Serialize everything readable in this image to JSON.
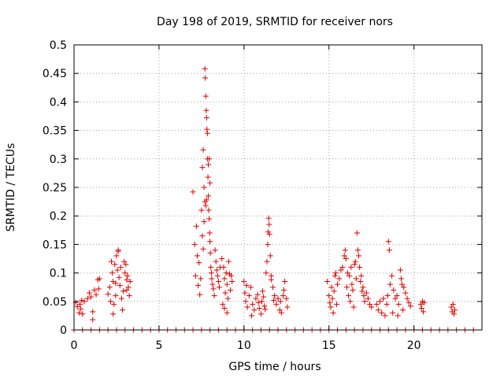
{
  "chart_data": {
    "type": "scatter",
    "title": "Day 198 of 2019, SRMTID for receiver nors",
    "xlabel": "GPS time / hours",
    "ylabel": "SRMTID / TECUs",
    "xlim": [
      0,
      24
    ],
    "ylim": [
      0,
      0.5
    ],
    "x_ticks": [
      0,
      5,
      10,
      15,
      20
    ],
    "y_ticks": [
      0,
      0.05,
      0.1,
      0.15,
      0.2,
      0.25,
      0.3,
      0.35,
      0.4,
      0.45,
      0.5
    ],
    "x_tick_labels": [
      "0",
      "5",
      "10",
      "15",
      "20"
    ],
    "y_tick_labels": [
      "0",
      "0.05",
      "0.1",
      "0.15",
      "0.2",
      "0.25",
      "0.3",
      "0.35",
      "0.4",
      "0.45",
      "0.5"
    ],
    "grid": true,
    "marker": "+",
    "color": "#e00000",
    "series": [
      {
        "name": "nors",
        "points": [
          [
            0.1,
            0.048
          ],
          [
            0.2,
            0.041
          ],
          [
            0.3,
            0.03
          ],
          [
            0.35,
            0.045
          ],
          [
            0.4,
            0.037
          ],
          [
            0.45,
            0.052
          ],
          [
            0.5,
            0.028
          ],
          [
            0.6,
            0.05
          ],
          [
            0.8,
            0.055
          ],
          [
            0.9,
            0.065
          ],
          [
            1.0,
            0.058
          ],
          [
            1.1,
            0.032
          ],
          [
            1.1,
            0.018
          ],
          [
            1.2,
            0.07
          ],
          [
            1.3,
            0.062
          ],
          [
            1.4,
            0.088
          ],
          [
            1.5,
            0.09
          ],
          [
            1.45,
            0.072
          ],
          [
            2.0,
            0.063
          ],
          [
            2.1,
            0.075
          ],
          [
            2.15,
            0.05
          ],
          [
            2.2,
            0.12
          ],
          [
            2.25,
            0.1
          ],
          [
            2.3,
            0.085
          ],
          [
            2.35,
            0.045
          ],
          [
            2.4,
            0.115
          ],
          [
            2.45,
            0.06
          ],
          [
            2.5,
            0.13
          ],
          [
            2.55,
            0.105
          ],
          [
            2.6,
            0.14
          ],
          [
            2.65,
            0.092
          ],
          [
            2.7,
            0.078
          ],
          [
            2.75,
            0.11
          ],
          [
            2.8,
            0.055
          ],
          [
            2.85,
            0.035
          ],
          [
            2.9,
            0.068
          ],
          [
            2.95,
            0.12
          ],
          [
            3.0,
            0.1
          ],
          [
            3.05,
            0.115
          ],
          [
            3.1,
            0.088
          ],
          [
            3.15,
            0.095
          ],
          [
            3.2,
            0.075
          ],
          [
            3.25,
            0.06
          ],
          [
            3.3,
            0.085
          ],
          [
            2.6,
            0.138
          ],
          [
            2.3,
            0.028
          ],
          [
            2.45,
            0.082
          ],
          [
            3.1,
            0.07
          ],
          [
            7.0,
            0.242
          ],
          [
            7.1,
            0.15
          ],
          [
            7.15,
            0.095
          ],
          [
            7.2,
            0.182
          ],
          [
            7.25,
            0.13
          ],
          [
            7.3,
            0.078
          ],
          [
            7.35,
            0.118
          ],
          [
            7.4,
            0.062
          ],
          [
            7.45,
            0.09
          ],
          [
            7.5,
            0.21
          ],
          [
            7.55,
            0.285
          ],
          [
            7.6,
            0.316
          ],
          [
            7.65,
            0.25
          ],
          [
            7.7,
            0.458
          ],
          [
            7.72,
            0.442
          ],
          [
            7.75,
            0.41
          ],
          [
            7.78,
            0.385
          ],
          [
            7.8,
            0.372
          ],
          [
            7.82,
            0.352
          ],
          [
            7.85,
            0.3
          ],
          [
            7.88,
            0.268
          ],
          [
            7.9,
            0.235
          ],
          [
            7.92,
            0.21
          ],
          [
            7.95,
            0.195
          ],
          [
            7.98,
            0.17
          ],
          [
            8.0,
            0.155
          ],
          [
            8.02,
            0.135
          ],
          [
            8.05,
            0.11
          ],
          [
            8.08,
            0.1
          ],
          [
            8.1,
            0.09
          ],
          [
            8.15,
            0.08
          ],
          [
            8.2,
            0.072
          ],
          [
            8.25,
            0.06
          ],
          [
            8.3,
            0.14
          ],
          [
            8.35,
            0.12
          ],
          [
            8.4,
            0.105
          ],
          [
            8.45,
            0.095
          ],
          [
            8.5,
            0.085
          ],
          [
            8.55,
            0.075
          ],
          [
            8.6,
            0.11
          ],
          [
            7.7,
            0.225
          ],
          [
            7.75,
            0.218
          ],
          [
            7.9,
            0.29
          ],
          [
            7.95,
            0.3
          ],
          [
            8.0,
            0.258
          ],
          [
            7.85,
            0.345
          ],
          [
            7.8,
            0.228
          ],
          [
            7.65,
            0.19
          ],
          [
            7.6,
            0.142
          ],
          [
            7.55,
            0.165
          ],
          [
            8.7,
            0.125
          ],
          [
            8.8,
            0.11
          ],
          [
            8.85,
            0.09
          ],
          [
            8.9,
            0.065
          ],
          [
            8.95,
            0.1
          ],
          [
            9.0,
            0.08
          ],
          [
            9.05,
            0.055
          ],
          [
            9.1,
            0.12
          ],
          [
            9.15,
            0.098
          ],
          [
            9.2,
            0.07
          ],
          [
            9.25,
            0.095
          ],
          [
            9.3,
            0.085
          ],
          [
            8.75,
            0.045
          ],
          [
            8.85,
            0.038
          ],
          [
            9.0,
            0.03
          ],
          [
            10.0,
            0.085
          ],
          [
            10.05,
            0.065
          ],
          [
            10.1,
            0.05
          ],
          [
            10.15,
            0.078
          ],
          [
            10.2,
            0.04
          ],
          [
            10.3,
            0.06
          ],
          [
            10.4,
            0.075
          ],
          [
            10.5,
            0.045
          ],
          [
            10.6,
            0.035
          ],
          [
            10.7,
            0.055
          ],
          [
            10.8,
            0.062
          ],
          [
            10.9,
            0.038
          ],
          [
            11.0,
            0.028
          ],
          [
            11.05,
            0.05
          ],
          [
            11.1,
            0.068
          ],
          [
            11.15,
            0.058
          ],
          [
            11.2,
            0.042
          ],
          [
            11.3,
            0.1
          ],
          [
            11.35,
            0.12
          ],
          [
            11.4,
            0.15
          ],
          [
            11.42,
            0.172
          ],
          [
            11.45,
            0.196
          ],
          [
            11.48,
            0.185
          ],
          [
            11.5,
            0.168
          ],
          [
            11.55,
            0.13
          ],
          [
            11.6,
            0.095
          ],
          [
            11.7,
            0.075
          ],
          [
            11.8,
            0.06
          ],
          [
            11.9,
            0.045
          ],
          [
            12.0,
            0.055
          ],
          [
            12.1,
            0.035
          ],
          [
            12.2,
            0.03
          ],
          [
            12.3,
            0.06
          ],
          [
            12.4,
            0.085
          ],
          [
            12.5,
            0.055
          ],
          [
            12.55,
            0.04
          ],
          [
            11.6,
            0.088
          ],
          [
            11.75,
            0.052
          ],
          [
            12.15,
            0.05
          ],
          [
            12.35,
            0.07
          ],
          [
            10.85,
            0.048
          ],
          [
            10.45,
            0.025
          ],
          [
            11.25,
            0.036
          ],
          [
            14.9,
            0.085
          ],
          [
            15.0,
            0.06
          ],
          [
            15.05,
            0.048
          ],
          [
            15.1,
            0.04
          ],
          [
            15.15,
            0.075
          ],
          [
            15.2,
            0.055
          ],
          [
            15.3,
            0.068
          ],
          [
            15.35,
            0.095
          ],
          [
            15.4,
            0.1
          ],
          [
            15.5,
            0.08
          ],
          [
            15.6,
            0.09
          ],
          [
            15.7,
            0.105
          ],
          [
            15.8,
            0.11
          ],
          [
            15.9,
            0.13
          ],
          [
            15.95,
            0.14
          ],
          [
            16.0,
            0.125
          ],
          [
            16.05,
            0.075
          ],
          [
            16.1,
            0.1
          ],
          [
            16.15,
            0.06
          ],
          [
            16.2,
            0.095
          ],
          [
            16.3,
            0.11
          ],
          [
            16.35,
            0.08
          ],
          [
            16.4,
            0.07
          ],
          [
            16.5,
            0.115
          ],
          [
            16.55,
            0.12
          ],
          [
            16.6,
            0.09
          ],
          [
            16.65,
            0.17
          ],
          [
            16.7,
            0.14
          ],
          [
            16.75,
            0.13
          ],
          [
            16.8,
            0.11
          ],
          [
            16.85,
            0.085
          ],
          [
            16.9,
            0.095
          ],
          [
            17.0,
            0.075
          ],
          [
            17.05,
            0.06
          ],
          [
            17.1,
            0.05
          ],
          [
            17.2,
            0.065
          ],
          [
            17.3,
            0.055
          ],
          [
            17.4,
            0.045
          ],
          [
            17.5,
            0.04
          ],
          [
            15.25,
            0.03
          ],
          [
            15.45,
            0.045
          ],
          [
            16.25,
            0.05
          ],
          [
            16.45,
            0.04
          ],
          [
            16.95,
            0.068
          ],
          [
            17.8,
            0.045
          ],
          [
            17.9,
            0.035
          ],
          [
            18.0,
            0.05
          ],
          [
            18.1,
            0.03
          ],
          [
            18.2,
            0.055
          ],
          [
            18.3,
            0.025
          ],
          [
            18.4,
            0.045
          ],
          [
            18.5,
            0.155
          ],
          [
            18.55,
            0.14
          ],
          [
            18.6,
            0.08
          ],
          [
            18.7,
            0.095
          ],
          [
            18.8,
            0.07
          ],
          [
            18.9,
            0.055
          ],
          [
            19.0,
            0.06
          ],
          [
            19.1,
            0.045
          ],
          [
            19.2,
            0.105
          ],
          [
            19.25,
            0.09
          ],
          [
            19.3,
            0.08
          ],
          [
            19.4,
            0.075
          ],
          [
            19.5,
            0.065
          ],
          [
            19.6,
            0.055
          ],
          [
            19.7,
            0.048
          ],
          [
            19.8,
            0.042
          ],
          [
            18.45,
            0.06
          ],
          [
            18.75,
            0.03
          ],
          [
            19.05,
            0.025
          ],
          [
            19.35,
            0.035
          ],
          [
            20.4,
            0.045
          ],
          [
            20.45,
            0.038
          ],
          [
            20.5,
            0.05
          ],
          [
            20.55,
            0.032
          ],
          [
            20.6,
            0.048
          ],
          [
            22.2,
            0.04
          ],
          [
            22.25,
            0.032
          ],
          [
            22.3,
            0.045
          ],
          [
            22.35,
            0.028
          ],
          [
            22.4,
            0.035
          ],
          [
            0.0,
            0.0
          ],
          [
            0.5,
            0.0
          ],
          [
            1.0,
            0.0
          ],
          [
            1.5,
            0.0
          ],
          [
            2.0,
            0.0
          ],
          [
            2.5,
            0.0
          ],
          [
            3.0,
            0.0
          ],
          [
            3.5,
            0.0
          ],
          [
            4.0,
            0.0
          ],
          [
            4.5,
            0.0
          ],
          [
            5.0,
            0.0
          ],
          [
            5.5,
            0.0
          ],
          [
            6.0,
            0.0
          ],
          [
            6.5,
            0.0
          ],
          [
            7.0,
            0.0
          ],
          [
            7.5,
            0.0
          ],
          [
            8.0,
            0.0
          ],
          [
            8.5,
            0.0
          ],
          [
            9.0,
            0.0
          ],
          [
            9.5,
            0.0
          ],
          [
            10.0,
            0.0
          ],
          [
            10.5,
            0.0
          ],
          [
            11.0,
            0.0
          ],
          [
            11.5,
            0.0
          ],
          [
            12.0,
            0.0
          ],
          [
            12.5,
            0.0
          ],
          [
            13.0,
            0.0
          ],
          [
            13.5,
            0.0
          ],
          [
            14.0,
            0.0
          ],
          [
            14.5,
            0.0
          ],
          [
            15.0,
            0.0
          ],
          [
            15.5,
            0.0
          ],
          [
            16.0,
            0.0
          ],
          [
            16.5,
            0.0
          ],
          [
            17.0,
            0.0
          ],
          [
            17.5,
            0.0
          ],
          [
            18.0,
            0.0
          ],
          [
            18.5,
            0.0
          ],
          [
            19.0,
            0.0
          ],
          [
            19.5,
            0.0
          ],
          [
            20.0,
            0.0
          ],
          [
            20.5,
            0.0
          ],
          [
            21.0,
            0.0
          ],
          [
            21.5,
            0.0
          ],
          [
            22.0,
            0.0
          ],
          [
            22.5,
            0.0
          ],
          [
            23.0,
            0.0
          ],
          [
            23.5,
            0.0
          ]
        ]
      }
    ]
  }
}
